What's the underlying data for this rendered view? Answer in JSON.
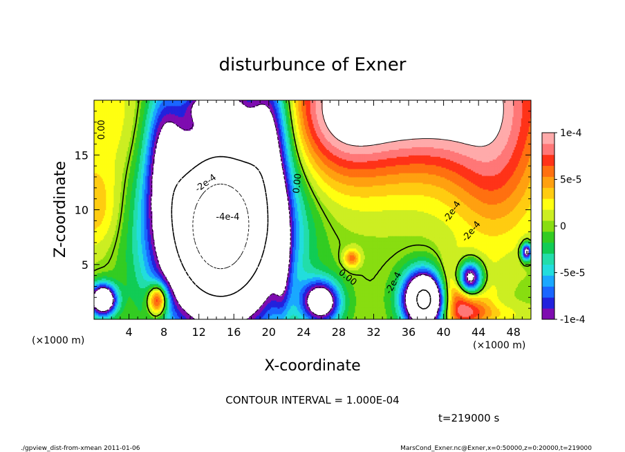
{
  "chart_data": {
    "type": "heatmap",
    "title": "disturbunce of Exner",
    "xlabel": "X-coordinate",
    "ylabel": "Z-coordinate",
    "xlim": [
      0,
      50
    ],
    "ylim": [
      0,
      20
    ],
    "x_ticks": [
      "4",
      "8",
      "12",
      "16",
      "20",
      "24",
      "28",
      "32",
      "36",
      "40",
      "44",
      "48"
    ],
    "y_ticks": [
      "5",
      "10",
      "15"
    ],
    "x_unit_left": "(×1000 m)",
    "x_unit_right": "(×1000 m)",
    "colorbar": {
      "min": -0.0001,
      "max": 0.0001,
      "tick_labels": [
        "1e-4",
        "5e-5",
        "0",
        "-5e-5",
        "-1e-4"
      ],
      "colors": [
        "#7e0cb0",
        "#2222dd",
        "#1a66ff",
        "#1aa8ff",
        "#22dddd",
        "#22ddaa",
        "#11cc55",
        "#33cc22",
        "#88dd11",
        "#ccee22",
        "#ffff11",
        "#ffcc11",
        "#ffa010",
        "#ff7010",
        "#ff3318",
        "#ff7777",
        "#ffaaaa"
      ]
    },
    "contour_labels": [
      "0.00",
      "0.00",
      "0.00",
      "-2e-4",
      "-4e-4",
      "-2e-4",
      "-2e-4",
      "-2e-4"
    ],
    "contour_interval": "CONTOUR INTERVAL = 1.000E-04",
    "time_label": "t=219000 s"
  },
  "footer": {
    "left": "./gpview_dist-from-xmean  2011-01-06",
    "right": "MarsCond_Exner.nc@Exner,x=0:50000,z=0:20000,t=219000"
  }
}
